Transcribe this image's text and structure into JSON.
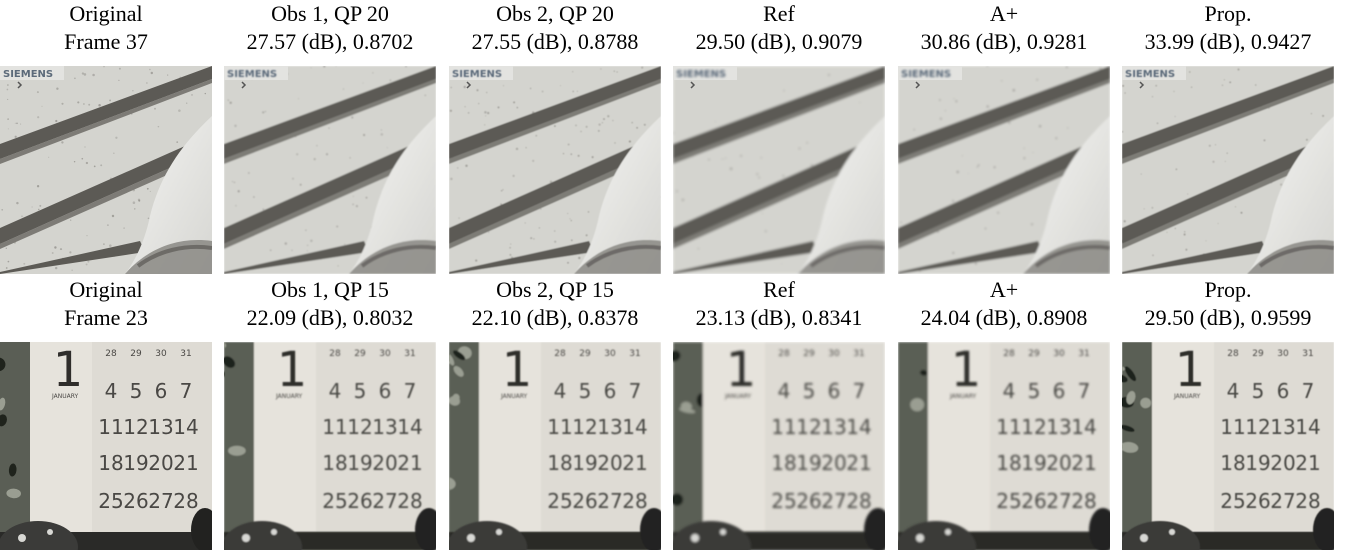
{
  "rows": [
    {
      "panels": [
        {
          "caption_line1": "Original",
          "caption_line2": "Frame 37",
          "image": "siemens-wall-original",
          "logo_text": "SIEMENS",
          "blur": 0,
          "noise": 0.9
        },
        {
          "caption_line1": "Obs 1, QP 20",
          "caption_line2": "27.57 (dB), 0.8702",
          "image": "siemens-wall-obs1",
          "logo_text": "SIEMENS",
          "blur": 0.9,
          "noise": 0.6
        },
        {
          "caption_line1": "Obs 2, QP 20",
          "caption_line2": "27.55 (dB), 0.8788",
          "image": "siemens-wall-obs2",
          "logo_text": "SIEMENS",
          "blur": 0.5,
          "noise": 0.9
        },
        {
          "caption_line1": "Ref",
          "caption_line2": "29.50 (dB), 0.9079",
          "image": "siemens-wall-ref",
          "logo_text": "SIEMENS",
          "blur": 1.4,
          "noise": 0.3
        },
        {
          "caption_line1": "A+",
          "caption_line2": "30.86 (dB), 0.9281",
          "image": "siemens-wall-aplus",
          "logo_text": "SIEMENS",
          "blur": 1.0,
          "noise": 0.4
        },
        {
          "caption_line1": "Prop.",
          "caption_line2": "33.99 (dB), 0.9427",
          "image": "siemens-wall-prop",
          "logo_text": "SIEMENS",
          "blur": 0.4,
          "noise": 0.5
        }
      ]
    },
    {
      "panels": [
        {
          "caption_line1": "Original",
          "caption_line2": "Frame 23",
          "image": "calendar-original",
          "blur": 0
        },
        {
          "caption_line1": "Obs 1, QP 15",
          "caption_line2": "22.09 (dB), 0.8032",
          "image": "calendar-obs1",
          "blur": 0.9
        },
        {
          "caption_line1": "Obs 2, QP 15",
          "caption_line2": "22.10 (dB), 0.8378",
          "image": "calendar-obs2",
          "blur": 0.8
        },
        {
          "caption_line1": "Ref",
          "caption_line2": "23.13 (dB), 0.8341",
          "image": "calendar-ref",
          "blur": 1.3
        },
        {
          "caption_line1": "A+",
          "caption_line2": "24.04 (dB), 0.8908",
          "image": "calendar-aplus",
          "blur": 1.0
        },
        {
          "caption_line1": "Prop.",
          "caption_line2": "29.50 (dB), 0.9599",
          "image": "calendar-prop",
          "blur": 0.4
        }
      ]
    }
  ],
  "calendar": {
    "month_number": "1",
    "month_name": "JANUARY",
    "weeks": [
      [
        "28",
        "29",
        "30",
        "31"
      ],
      [
        "4",
        "5",
        "6",
        "7"
      ],
      [
        "11",
        "12",
        "13",
        "14"
      ],
      [
        "18",
        "19",
        "20",
        "21"
      ],
      [
        "25",
        "26",
        "27",
        "28"
      ]
    ]
  },
  "colors": {
    "wall": "#d4d4cf",
    "stripe": "#5c5a55",
    "stripe_shadow": "#7d7b76",
    "pipe": "#ebebe8",
    "pipe_shadow": "#8a8884",
    "calendar_paper": "#dedbd4",
    "calendar_text": "#4a4845",
    "plant_dark": "#1f231c",
    "plant_mid": "#5a5e55"
  }
}
